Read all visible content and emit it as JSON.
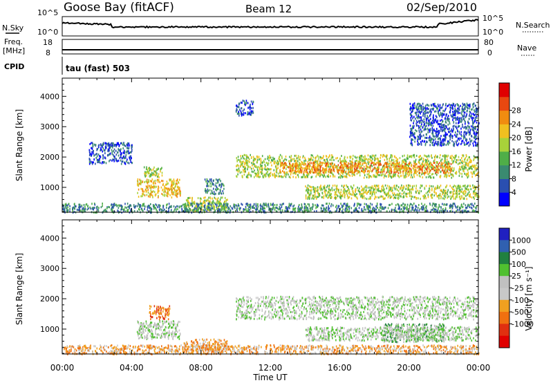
{
  "header": {
    "station": "Goose Bay (fitACF)",
    "beam": "Beam 12",
    "date": "02/Sep/2010"
  },
  "strip_labels": {
    "nsky": "N.Sky",
    "nsearch": "N.Search",
    "freq_line1": "Freq.",
    "freq_line2": "[MHz]",
    "nave": "Nave",
    "cpid": "CPID",
    "cpid_value": "tau (fast) 503"
  },
  "strip_ticks": {
    "nsky_top": "10^5",
    "nsky_bottom": "10^0",
    "freq_top": "18",
    "freq_bottom": "8",
    "nave_top": "80",
    "nave_bottom": "0"
  },
  "colors": {
    "power": [
      "#0000ff",
      "#2a4fb0",
      "#3a8a70",
      "#4fae48",
      "#a8d23a",
      "#f0c020",
      "#f08c10",
      "#e84810",
      "#e00000"
    ],
    "velocity": [
      "#2020c0",
      "#3060b0",
      "#208040",
      "#50c030",
      "#c0c0c0",
      "#c8c8c8",
      "#f0a020",
      "#f07010",
      "#e03010",
      "#e00000"
    ]
  },
  "chart_data": [
    {
      "type": "heatmap",
      "title": "",
      "xlabel": "",
      "ylabel": "Slant Range [km]",
      "x_ticks": [
        "00:00",
        "04:00",
        "08:00",
        "12:00",
        "16:00",
        "20:00",
        "00:00"
      ],
      "y_ticks": [
        "1000",
        "2000",
        "3000",
        "4000"
      ],
      "xlim_hours": [
        0,
        24
      ],
      "ylim_km": [
        180,
        4600
      ],
      "colorbar": {
        "label": "Power [dB]",
        "ticks": [
          "4",
          "8",
          "12",
          "16",
          "20",
          "24",
          "28"
        ]
      },
      "regions": [
        {
          "t0": 4.3,
          "t1": 6.8,
          "r0": 700,
          "r1": 1300,
          "level": 5
        },
        {
          "t0": 4.7,
          "t1": 5.8,
          "r0": 1350,
          "r1": 1700,
          "level": 4
        },
        {
          "t0": 7.0,
          "t1": 9.5,
          "r0": 250,
          "r1": 700,
          "level": 4
        },
        {
          "t0": 8.2,
          "t1": 9.3,
          "r0": 800,
          "r1": 1300,
          "level": 2
        },
        {
          "t0": 10.0,
          "t1": 24.0,
          "r0": 1350,
          "r1": 2100,
          "level": 4
        },
        {
          "t0": 12.5,
          "t1": 22.5,
          "r0": 1500,
          "r1": 1850,
          "level": 6
        },
        {
          "t0": 14.0,
          "t1": 24.0,
          "r0": 650,
          "r1": 1100,
          "level": 4
        },
        {
          "t0": 0.0,
          "t1": 24.0,
          "r0": 200,
          "r1": 500,
          "level": 2
        },
        {
          "t0": 1.5,
          "t1": 4.0,
          "r0": 1800,
          "r1": 2500,
          "level": 1
        },
        {
          "t0": 10.0,
          "t1": 11.0,
          "r0": 3400,
          "r1": 3900,
          "level": 1
        },
        {
          "t0": 20.0,
          "t1": 24.0,
          "r0": 2400,
          "r1": 3800,
          "level": 1
        }
      ]
    },
    {
      "type": "heatmap",
      "title": "",
      "xlabel": "Time UT",
      "ylabel": "Slant Range [km]",
      "x_ticks": [
        "00:00",
        "04:00",
        "08:00",
        "12:00",
        "16:00",
        "20:00",
        "00:00"
      ],
      "y_ticks": [
        "1000",
        "2000",
        "3000",
        "4000"
      ],
      "xlim_hours": [
        0,
        24
      ],
      "ylim_km": [
        180,
        4600
      ],
      "colorbar": {
        "label": "Velocity [m s⁻¹]",
        "ticks": [
          "1000",
          "500",
          "100",
          "25",
          "-25",
          "-100",
          "-500",
          "-1000"
        ]
      },
      "regions": [
        {
          "t0": 4.3,
          "t1": 6.8,
          "r0": 700,
          "r1": 1300,
          "level": 4
        },
        {
          "t0": 5.0,
          "t1": 6.2,
          "r0": 1350,
          "r1": 1800,
          "level": 7
        },
        {
          "t0": 7.0,
          "t1": 9.5,
          "r0": 250,
          "r1": 700,
          "level": 6
        },
        {
          "t0": 10.0,
          "t1": 24.0,
          "r0": 1350,
          "r1": 2100,
          "level": 4
        },
        {
          "t0": 18.5,
          "t1": 22.0,
          "r0": 600,
          "r1": 1200,
          "level": 3
        },
        {
          "t0": 14.0,
          "t1": 24.0,
          "r0": 650,
          "r1": 1100,
          "level": 4
        },
        {
          "t0": 0.0,
          "t1": 24.0,
          "r0": 200,
          "r1": 500,
          "level": 6
        }
      ]
    }
  ]
}
